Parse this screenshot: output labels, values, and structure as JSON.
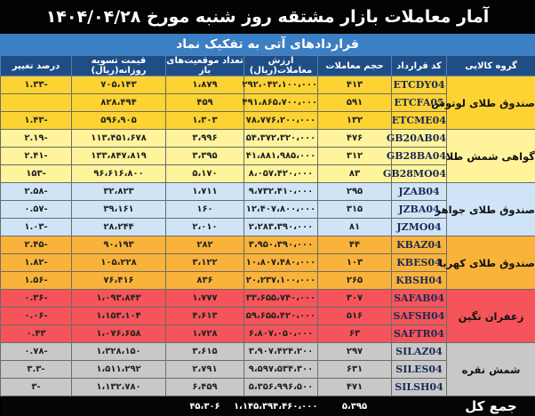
{
  "title": "آمار معاملات بازار مشتقه روز شنبه مورخ ۱۴۰۴/۰۴/۲۸",
  "subtitle": "قراردادهای آتی به تفکیک نماد",
  "headers": {
    "group": "گروه کالایی",
    "code": "کد قرارداد",
    "volume": "حجم معاملات",
    "value": "ارزش معاملات(ریال)",
    "open_interest": "تعداد موقعیت‌های باز",
    "settlement": "قیمت تسویه روزانه(ریال)",
    "change": "درصد تغییر"
  },
  "groups": [
    {
      "name": "صندوق طلای لوتوس",
      "color": "#fcd333",
      "rows": [
        {
          "code": "ETCDY04",
          "volume": "۴۱۳",
          "value": "۲۹۲،۰۴۲،۱۰۰،۰۰۰",
          "open_interest": "۱،۸۷۹",
          "settlement": "۷۰۵،۱۴۳",
          "change": "-۱.۳۳"
        },
        {
          "code": "ETCFA05",
          "volume": "۵۹۱",
          "value": "۴۹۱،۸۶۵،۷۰۰،۰۰۰",
          "open_interest": "۴۵۹",
          "settlement": "۸۲۸،۴۹۴",
          "change": ""
        },
        {
          "code": "ETCME04",
          "volume": "۱۳۲",
          "value": "۷۸،۷۷۶،۲۰۰،۰۰۰",
          "open_interest": "۱،۳۰۳",
          "settlement": "۵۹۶،۹۰۵",
          "change": "-۱.۴۳"
        }
      ]
    },
    {
      "name": "گواهی شمش طلا",
      "color": "#fff39b",
      "rows": [
        {
          "code": "GB20AB04",
          "volume": "۴۷۶",
          "value": "۵۴،۳۷۲،۳۲۰،۰۰۰",
          "open_interest": "۳،۹۹۶",
          "settlement": "۱۱۳،۴۵۱،۶۷۸",
          "change": "-۲.۱۹"
        },
        {
          "code": "GB28BA04",
          "volume": "۳۱۲",
          "value": "۴۱،۸۸۱،۹۸۵،۰۰۰",
          "open_interest": "۳،۳۹۵",
          "settlement": "۱۳۳،۸۴۷،۸۱۹",
          "change": "-۲.۴۱"
        },
        {
          "code": "GB28MO04",
          "volume": "۸۳",
          "value": "۸،۰۵۷،۴۲۰،۰۰۰",
          "open_interest": "۵،۱۷۰",
          "settlement": "۹۶،۶۱۶،۸۰۰",
          "change": "-۱۵۳"
        }
      ]
    },
    {
      "name": "صندوق طلای جواهر",
      "color": "#cfe5f7",
      "rows": [
        {
          "code": "JZAB04",
          "volume": "۲۹۵",
          "value": "۹،۷۳۲،۴۱۰،۰۰۰",
          "open_interest": "۱،۷۱۱",
          "settlement": "۳۲،۸۲۳",
          "change": "-۲.۵۸"
        },
        {
          "code": "JZBA04",
          "volume": "۳۱۵",
          "value": "۱۲،۴۰۷،۸۰۰،۰۰۰",
          "open_interest": "۱۶۰",
          "settlement": "۳۹،۱۶۱",
          "change": "-۰.۵۷"
        },
        {
          "code": "JZMO04",
          "volume": "۸۱",
          "value": "۲،۲۸۳،۳۹۰،۰۰۰",
          "open_interest": "۲،۰۱۰",
          "settlement": "۲۸،۲۴۴",
          "change": "-۱.۰۳"
        }
      ]
    },
    {
      "name": "صندوق طلای کهربا",
      "color": "#f9b33b",
      "rows": [
        {
          "code": "KBAZ04",
          "volume": "۴۴",
          "value": "۳،۹۵۰،۳۹۰،۰۰۰",
          "open_interest": "۲۸۲",
          "settlement": "۹۰،۱۹۳",
          "change": "-۲.۴۵"
        },
        {
          "code": "KBES04",
          "volume": "۱۰۳",
          "value": "۱۰،۸۰۷،۴۸۰،۰۰۰",
          "open_interest": "۳،۱۲۲",
          "settlement": "۱۰۵،۲۲۸",
          "change": "-۱.۸۲"
        },
        {
          "code": "KBSH04",
          "volume": "۲۶۵",
          "value": "۲۰،۲۳۷،۱۰۰،۰۰۰",
          "open_interest": "۸۳۶",
          "settlement": "۷۶،۴۱۶",
          "change": "-۱.۵۶"
        }
      ]
    },
    {
      "name": "زعفران نگین",
      "color": "#f4545a",
      "rows": [
        {
          "code": "SAFAB04",
          "volume": "۳۰۷",
          "value": "۳۳،۶۵۵،۷۴۰،۰۰۰",
          "open_interest": "۱،۷۷۷",
          "settlement": "۱،۰۹۳،۸۴۳",
          "change": "-۰.۳۶"
        },
        {
          "code": "SAFSH04",
          "volume": "۵۱۶",
          "value": "۵۹،۶۵۵،۴۲۰،۰۰۰",
          "open_interest": "۴،۶۱۳",
          "settlement": "۱،۱۵۳،۱۰۴",
          "change": "-۰.۰۶"
        },
        {
          "code": "SAFTR04",
          "volume": "۶۳",
          "value": "۶،۸۰۷،۰۵۰،۰۰۰",
          "open_interest": "۱،۷۲۸",
          "settlement": "۱،۰۷۶،۶۵۸",
          "change": "۰.۴۳"
        }
      ]
    },
    {
      "name": "شمش نقره",
      "color": "#c8c8c8",
      "rows": [
        {
          "code": "SILAZ04",
          "volume": "۲۹۷",
          "value": "۳،۹۰۷،۴۲۴،۲۰۰",
          "open_interest": "۳،۶۱۵",
          "settlement": "۱،۳۲۸،۱۵۰",
          "change": "-۰.۷۸"
        },
        {
          "code": "SILES04",
          "volume": "۶۳۱",
          "value": "۹،۵۹۷،۵۳۴،۳۰۰",
          "open_interest": "۲،۷۹۱",
          "settlement": "۱،۵۱۱،۲۹۲",
          "change": "-۳.۳"
        },
        {
          "code": "SILSH04",
          "volume": "۴۷۱",
          "value": "۵،۳۵۶،۹۹۶،۵۰۰",
          "open_interest": "۶،۴۵۹",
          "settlement": "۱،۱۳۲،۷۸۰",
          "change": "-۳"
        }
      ]
    }
  ],
  "total": {
    "label": "جمع کل",
    "volume": "۵،۳۹۵",
    "value": "۱،۱۴۵،۳۹۴،۴۶۰،۰۰۰",
    "open_interest": "۴۵،۳۰۶"
  }
}
